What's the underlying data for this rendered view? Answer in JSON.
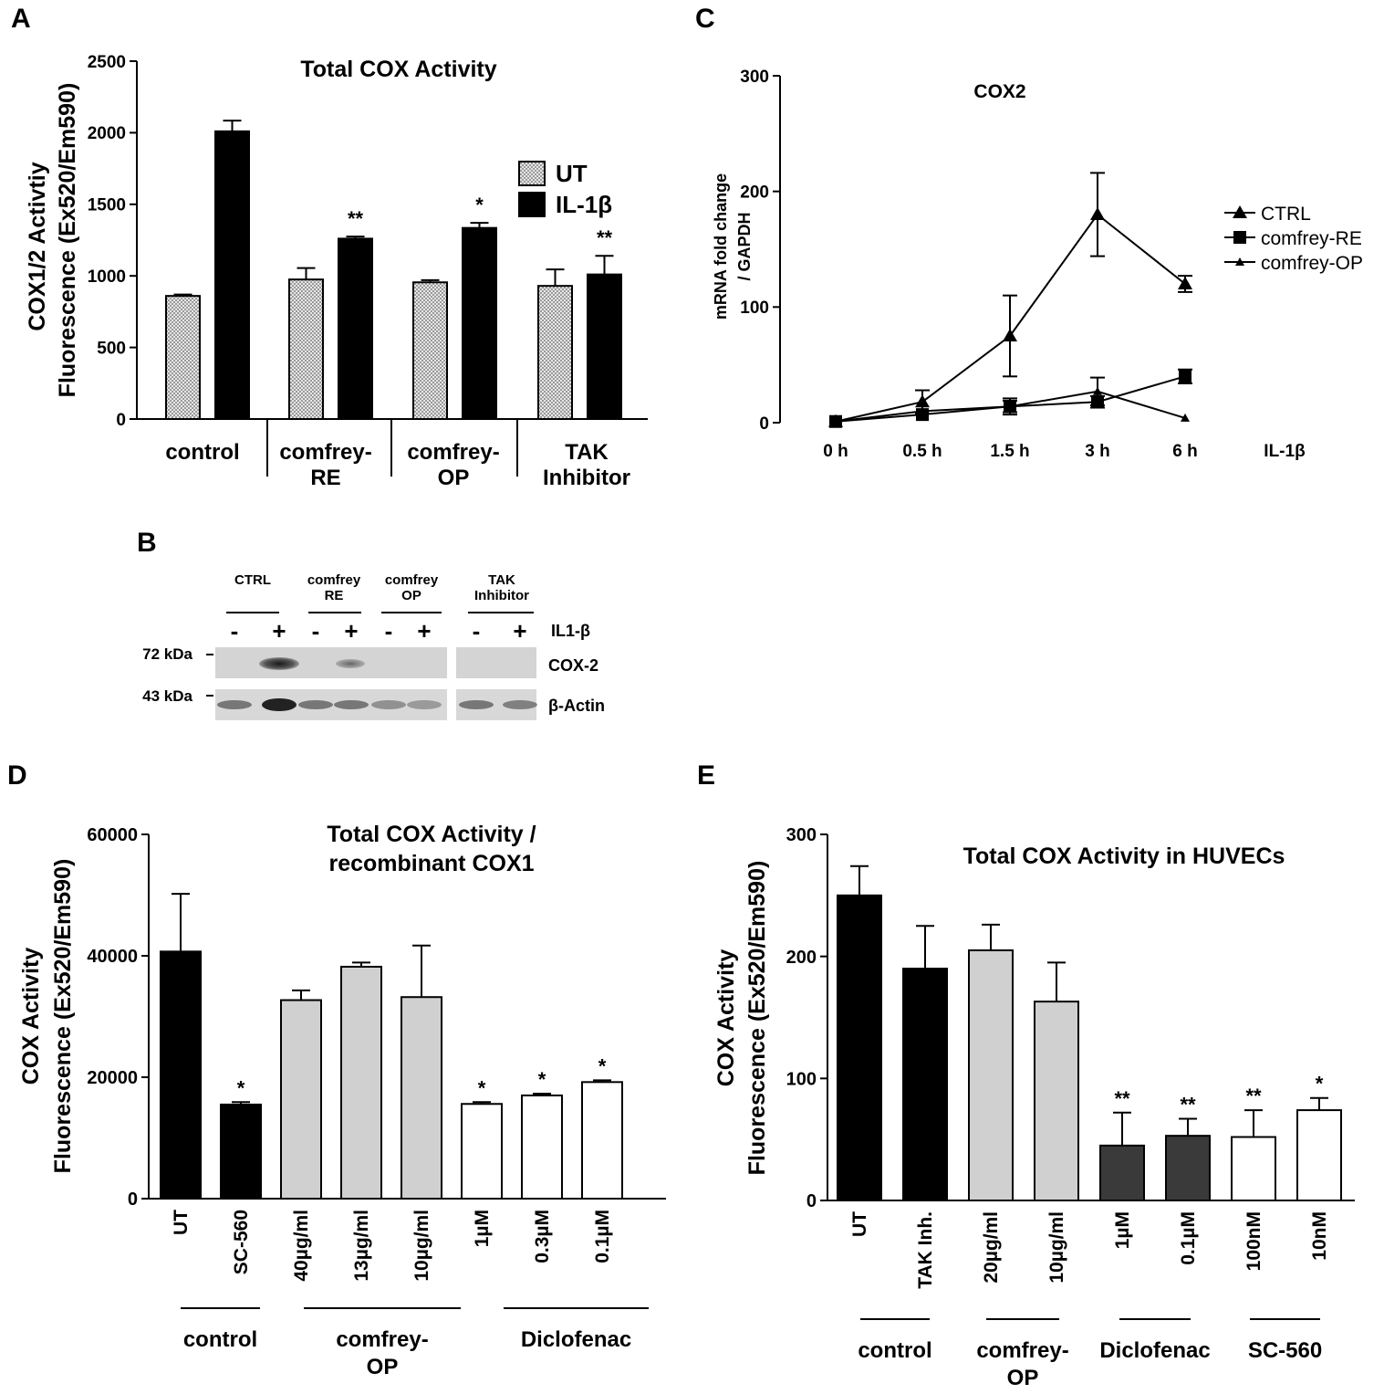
{
  "panels": {
    "A": {
      "letter": "A"
    },
    "B": {
      "letter": "B"
    },
    "C": {
      "letter": "C"
    },
    "D": {
      "letter": "D"
    },
    "E": {
      "letter": "E"
    }
  },
  "chart_data": [
    {
      "id": "A",
      "type": "bar",
      "title": "Total COX Activity",
      "ylabel": [
        "COX1/2 Activtiy",
        "Fluorescence (Ex520/Em590)"
      ],
      "ylim": [
        0,
        2500
      ],
      "yticks": [
        0,
        500,
        1000,
        1500,
        2000,
        2500
      ],
      "groups": [
        [
          "control"
        ],
        [
          "comfrey-",
          "RE"
        ],
        [
          "comfrey-",
          "OP"
        ],
        [
          "TAK",
          "Inhibitor"
        ]
      ],
      "series": [
        {
          "name": "UT",
          "color": "#dcdcdc",
          "values": [
            860,
            975,
            955,
            930
          ],
          "errors": [
            10,
            80,
            15,
            115
          ]
        },
        {
          "name": "IL-1β",
          "color": "#000000",
          "values": [
            2010,
            1260,
            1335,
            1010
          ],
          "errors": [
            75,
            15,
            35,
            130
          ]
        }
      ],
      "sig": [
        "",
        "**",
        "*",
        "**"
      ],
      "legend": {
        "position": "right",
        "entries": [
          "UT",
          "IL-1β"
        ]
      }
    },
    {
      "id": "C",
      "type": "line",
      "title": "COX2",
      "ylabel": [
        "mRNA fold change",
        "/ GAPDH"
      ],
      "xlabel": "IL-1β",
      "ylim": [
        0,
        300
      ],
      "yticks": [
        0,
        100,
        200,
        300
      ],
      "categories": [
        "0 h",
        "0.5 h",
        "1.5 h",
        "3 h",
        "6 h"
      ],
      "series": [
        {
          "name": "CTRL",
          "marker": "triangle",
          "values": [
            1,
            18,
            75,
            180,
            120
          ],
          "errors": [
            3,
            10,
            35,
            36,
            7
          ]
        },
        {
          "name": "comfrey-RE",
          "marker": "square",
          "values": [
            1,
            7,
            14,
            18,
            40
          ],
          "errors": [
            2,
            3,
            7,
            5,
            6
          ]
        },
        {
          "name": "comfrey-OP",
          "marker": "small-triangle",
          "values": [
            1,
            10,
            14,
            27,
            4
          ],
          "errors": [
            2,
            3,
            5,
            12,
            2
          ]
        }
      ],
      "legend": {
        "position": "right",
        "entries": [
          "CTRL",
          "comfrey-RE",
          "comfrey-OP"
        ]
      }
    },
    {
      "id": "D",
      "type": "bar",
      "title": [
        "Total COX Activity /",
        "recombinant COX1"
      ],
      "ylabel": [
        "COX Activity",
        "Fluorescence (Ex520/Em590)"
      ],
      "ylim": [
        0,
        60000
      ],
      "yticks": [
        0,
        20000,
        40000,
        60000
      ],
      "categories": [
        "UT",
        "SC-560",
        "40µg/ml",
        "13µg/ml",
        "10µg/ml",
        "1µM",
        "0.3µM",
        "0.1µM"
      ],
      "values": [
        40700,
        15500,
        32700,
        38200,
        33200,
        15600,
        17000,
        19200
      ],
      "errors": [
        9500,
        400,
        1600,
        700,
        8500,
        300,
        300,
        300
      ],
      "colors": [
        "#000000",
        "#000000",
        "#d0d0d0",
        "#d0d0d0",
        "#d0d0d0",
        "#ffffff",
        "#ffffff",
        "#ffffff"
      ],
      "sig": [
        "",
        "*",
        "",
        "",
        "",
        "*",
        "*",
        "*"
      ],
      "groups": [
        [
          "control"
        ],
        [
          "comfrey-",
          "OP"
        ],
        [
          "Diclofenac"
        ]
      ]
    },
    {
      "id": "E",
      "type": "bar",
      "title": "Total COX Activity in HUVECs",
      "ylabel": [
        "COX Activity",
        "Fluorescence (Ex520/Em590)"
      ],
      "ylim": [
        0,
        300
      ],
      "yticks": [
        0,
        100,
        200,
        300
      ],
      "categories": [
        "UT",
        "TAK Inh.",
        "20µg/ml",
        "10µg/ml",
        "1µM",
        "0.1µM",
        "100nM",
        "10nM"
      ],
      "values": [
        250,
        190,
        205,
        163,
        45,
        53,
        52,
        74
      ],
      "errors": [
        24,
        35,
        21,
        32,
        27,
        14,
        22,
        10
      ],
      "colors": [
        "#000000",
        "#000000",
        "#d0d0d0",
        "#d0d0d0",
        "#3a3a3a",
        "#3a3a3a",
        "#ffffff",
        "#ffffff"
      ],
      "sig": [
        "",
        "",
        "",
        "",
        "**",
        "**",
        "**",
        "*"
      ],
      "groups": [
        [
          "control"
        ],
        [
          "comfrey-",
          "OP"
        ],
        [
          "Diclofenac"
        ],
        [
          "SC-560"
        ]
      ]
    }
  ],
  "blot": {
    "groups": [
      [
        "CTRL"
      ],
      [
        "comfrey",
        "RE"
      ],
      [
        "comfrey",
        "OP"
      ],
      [
        "TAK",
        "Inhibitor"
      ]
    ],
    "lanes": [
      "-",
      "+",
      "-",
      "+",
      "-",
      "+",
      "-",
      "+"
    ],
    "treatment": "IL1-β",
    "markers": [
      "72 kDa",
      "43 kDa"
    ],
    "bands": [
      "COX-2",
      "β-Actin"
    ]
  }
}
